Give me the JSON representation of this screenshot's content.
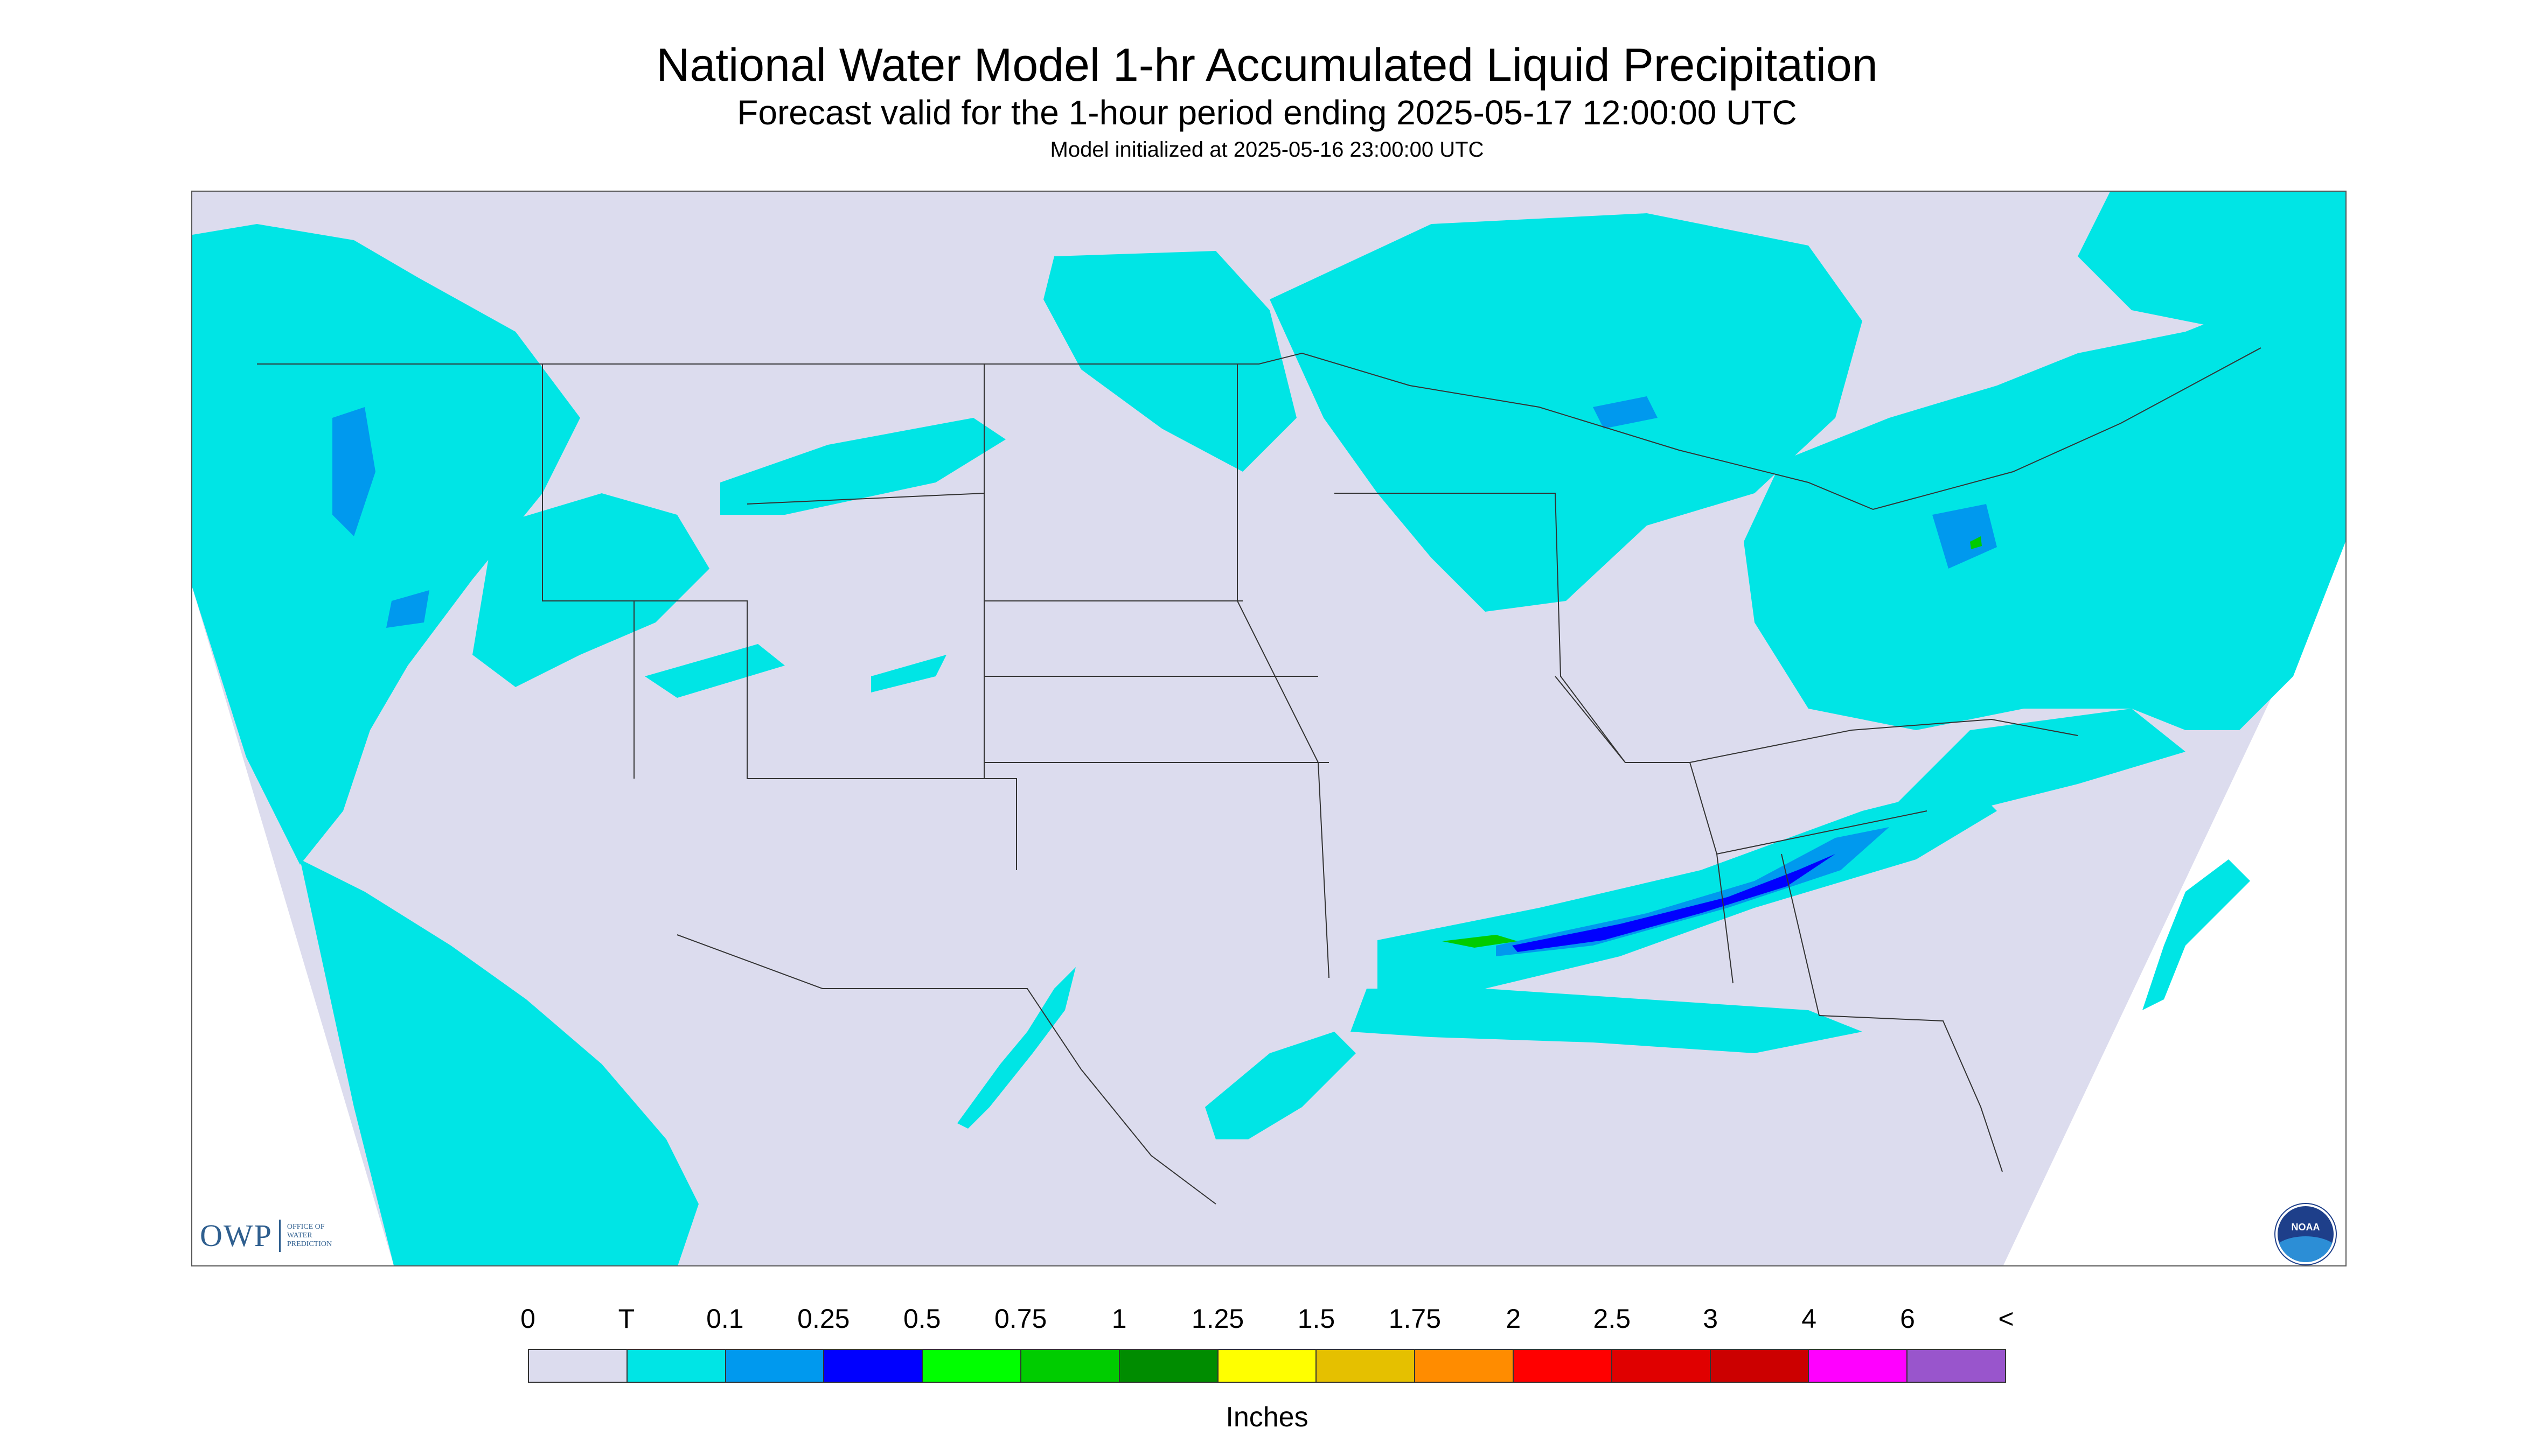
{
  "title": "National Water Model 1-hr Accumulated Liquid Precipitation",
  "subtitle": "Forecast valid for the 1-hour period ending 2025-05-17 12:00:00 UTC",
  "init_line": "Model initialized at 2025-05-16 23:00:00 UTC",
  "logos": {
    "owp_mark": "OWP",
    "owp_text": "OFFICE OF WATER PREDICTION",
    "noaa_text": "NOAA"
  },
  "legend": {
    "tick_labels": [
      "0",
      "T",
      "0.1",
      "0.25",
      "0.5",
      "0.75",
      "1",
      "1.25",
      "1.5",
      "1.75",
      "2",
      "2.5",
      "3",
      "4",
      "6",
      "<"
    ],
    "colors": [
      "#dcdcee",
      "#00e5e5",
      "#0099ee",
      "#0000ff",
      "#00ff00",
      "#00cc00",
      "#008c00",
      "#ffff00",
      "#e5c000",
      "#ff8c00",
      "#ff0000",
      "#e00000",
      "#cc0000",
      "#ff00ff",
      "#9955cc"
    ],
    "units": "Inches"
  },
  "colors": {
    "background_map": "#dcdcee",
    "no_data": "#ffffff",
    "trace": "#00e5e5",
    "light": "#0099ee",
    "moderate": "#0000ff",
    "heavy": "#00cc00"
  }
}
